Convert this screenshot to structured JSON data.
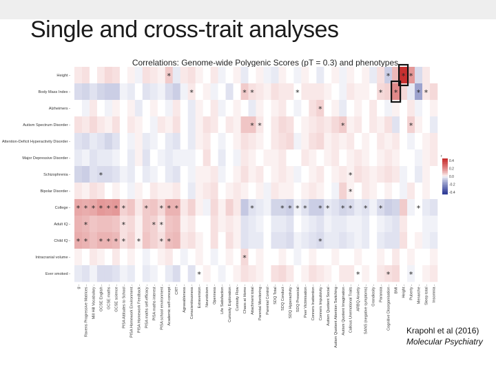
{
  "slide": {
    "title": "Single and cross-trait analyses",
    "citation_author": "Krapohl et al (2016)",
    "citation_journal": "Molecular Psychiatry"
  },
  "colors": {
    "positive": "#c62828",
    "negative": "#283593",
    "neutral": "#ffffff",
    "highlight_box": "#111111"
  },
  "chart_data": {
    "type": "heatmap",
    "title": "Correlations: Genome-wide Polygenic Scores (pT = 0.3) and phenotypes",
    "rows": [
      "Height",
      "Body Mass Index",
      "Alzheimers",
      "Autism Spectrum Disorder",
      "Attention-Deficit Hyperactivity Disorder",
      "Major Depressive Disorder",
      "Schizophrenia",
      "Bipolar Disorder",
      "College",
      "Adult IQ",
      "Child IQ",
      "Intracranial volume",
      "Ever smoked"
    ],
    "columns": [
      "g",
      "Ravens Progressive Matrices",
      "Mill Hill Vocabulary",
      "GCSE English",
      "GCSE maths",
      "GCSE science",
      "PISA Attitudes to School",
      "PISA Homework Environment",
      "PISA Homework Feedback",
      "PISA maths self-efficacy",
      "PISA maths interest",
      "PISA school environment",
      "Academic self-concept",
      "CRT",
      "Agreeableness",
      "Conscientiousness",
      "Extraversion",
      "Neuroticism",
      "Openness",
      "Life Satisfaction",
      "Curiosity Exploration",
      "Curiosity Flow",
      "Chaos at Home",
      "Attachment total",
      "Parental Monitoring",
      "Parental Control",
      "SDQ Total",
      "SDQ Conduct",
      "SDQ Hyperactivity",
      "SDQ Prosocial",
      "Peer Victimisation",
      "Conners Inattention",
      "Conners Impulsivity",
      "Autism Quotient Social",
      "Autism Quotient Attention Switching",
      "Autism Quotient Imagination",
      "Callous Unemotional Traits",
      "ARBQ Anxiety",
      "SANS (negative symptoms)",
      "Grandiosity",
      "Paranoia",
      "Cognitive Disorganisation",
      "BMI",
      "Height",
      "Puberty",
      "Menarche",
      "Sleep total",
      "Insomnia"
    ],
    "legend": {
      "ticks": [
        "0.4",
        "0.2",
        "0.0",
        "-0.2",
        "-0.4"
      ],
      "range": [
        -0.4,
        0.4
      ],
      "placement": "right",
      "marker": "r"
    },
    "significance_marker": "*",
    "values": [
      [
        0.02,
        0.03,
        0.0,
        0.02,
        0.04,
        0.03,
        0.0,
        0.01,
        -0.01,
        0.03,
        0.02,
        0.01,
        0.06,
        -0.02,
        0.02,
        0.03,
        0.01,
        0.0,
        0.02,
        -0.01,
        0.0,
        0.01,
        -0.02,
        0.0,
        0.01,
        -0.01,
        -0.02,
        0.01,
        0.0,
        -0.01,
        0.01,
        0.0,
        -0.02,
        0.0,
        0.01,
        -0.01,
        0.01,
        0.0,
        0.01,
        -0.02,
        0.03,
        -0.06,
        0.09,
        0.38,
        0.15,
        -0.04,
        0.02,
        0.0
      ],
      [
        -0.04,
        -0.05,
        -0.03,
        -0.05,
        -0.06,
        -0.06,
        -0.01,
        -0.02,
        0.0,
        -0.03,
        -0.02,
        -0.01,
        -0.04,
        -0.06,
        -0.01,
        0.02,
        0.0,
        0.01,
        -0.01,
        0.0,
        -0.03,
        0.0,
        0.06,
        0.03,
        0.02,
        0.01,
        0.03,
        0.02,
        0.02,
        0.0,
        0.02,
        0.02,
        0.02,
        0.01,
        0.0,
        -0.01,
        0.02,
        0.01,
        0.01,
        0.0,
        0.04,
        0.05,
        0.18,
        0.04,
        -0.02,
        -0.14,
        0.02,
        0.04
      ],
      [
        0.0,
        -0.01,
        0.02,
        0.0,
        -0.01,
        0.01,
        0.0,
        0.01,
        -0.02,
        0.0,
        0.01,
        0.0,
        -0.01,
        0.02,
        0.0,
        -0.02,
        0.01,
        0.0,
        0.02,
        -0.01,
        0.0,
        0.01,
        0.0,
        -0.02,
        0.01,
        0.0,
        0.01,
        0.02,
        0.0,
        -0.01,
        0.0,
        0.03,
        0.05,
        0.0,
        0.01,
        -0.02,
        0.0,
        0.01,
        0.0,
        0.02,
        0.0,
        -0.01,
        0.01,
        0.0,
        0.02,
        -0.01,
        0.0,
        0.01
      ],
      [
        0.03,
        0.02,
        0.04,
        0.02,
        0.01,
        0.03,
        0.0,
        0.02,
        0.01,
        0.0,
        -0.01,
        0.02,
        0.01,
        0.03,
        0.0,
        -0.02,
        0.01,
        0.03,
        0.02,
        0.0,
        0.02,
        0.01,
        0.07,
        0.07,
        0.02,
        0.0,
        0.02,
        0.04,
        0.03,
        0.0,
        0.01,
        0.02,
        0.03,
        0.02,
        0.04,
        0.06,
        0.01,
        0.02,
        0.0,
        0.02,
        0.01,
        0.03,
        -0.03,
        0.0,
        0.05,
        0.01,
        0.0,
        -0.02
      ],
      [
        -0.03,
        -0.04,
        -0.02,
        -0.03,
        -0.05,
        -0.03,
        0.0,
        -0.01,
        0.01,
        -0.02,
        -0.01,
        0.0,
        -0.02,
        -0.03,
        0.0,
        -0.02,
        0.01,
        0.02,
        0.0,
        -0.01,
        0.0,
        0.01,
        0.03,
        0.02,
        0.01,
        0.0,
        0.02,
        0.03,
        0.04,
        -0.01,
        0.01,
        0.03,
        0.04,
        0.01,
        0.02,
        0.01,
        0.02,
        0.0,
        0.01,
        0.0,
        0.02,
        0.01,
        0.02,
        0.0,
        -0.01,
        0.0,
        0.01,
        0.02
      ],
      [
        -0.02,
        -0.01,
        -0.03,
        -0.02,
        -0.02,
        -0.01,
        0.0,
        -0.02,
        0.01,
        -0.03,
        0.0,
        -0.01,
        -0.02,
        -0.01,
        -0.01,
        -0.01,
        0.0,
        0.03,
        0.0,
        -0.02,
        0.0,
        -0.01,
        0.02,
        0.01,
        0.0,
        0.01,
        0.01,
        0.02,
        0.0,
        0.0,
        0.02,
        0.01,
        0.0,
        0.01,
        0.02,
        0.0,
        0.01,
        0.02,
        0.01,
        0.0,
        0.01,
        0.02,
        0.01,
        0.0,
        0.0,
        -0.01,
        0.01,
        0.02
      ],
      [
        -0.05,
        -0.06,
        -0.03,
        -0.04,
        -0.04,
        -0.03,
        -0.01,
        -0.02,
        0.0,
        -0.02,
        -0.01,
        0.0,
        -0.02,
        -0.03,
        0.0,
        -0.01,
        0.01,
        0.01,
        0.02,
        -0.01,
        0.0,
        0.01,
        0.03,
        0.01,
        0.02,
        0.0,
        0.01,
        0.02,
        0.01,
        -0.01,
        0.0,
        0.01,
        0.02,
        0.0,
        0.01,
        0.02,
        0.01,
        0.03,
        0.02,
        0.01,
        0.02,
        0.03,
        0.02,
        -0.01,
        0.0,
        -0.02,
        0.01,
        0.0
      ],
      [
        0.02,
        0.01,
        0.03,
        0.02,
        0.0,
        0.01,
        0.0,
        -0.01,
        0.01,
        0.0,
        0.02,
        0.01,
        0.01,
        0.02,
        0.0,
        -0.02,
        0.01,
        0.02,
        0.03,
        0.0,
        0.01,
        0.02,
        0.01,
        0.0,
        0.01,
        -0.01,
        0.02,
        0.01,
        0.01,
        0.0,
        0.01,
        0.02,
        0.01,
        0.0,
        -0.01,
        0.05,
        0.01,
        0.0,
        0.02,
        0.01,
        0.0,
        0.01,
        0.0,
        -0.01,
        0.02,
        0.0,
        0.01,
        0.0
      ],
      [
        0.12,
        0.11,
        0.12,
        0.15,
        0.14,
        0.15,
        0.05,
        0.07,
        0.02,
        0.06,
        0.07,
        0.04,
        0.1,
        0.1,
        0.02,
        0.05,
        0.01,
        -0.01,
        0.04,
        0.01,
        0.05,
        0.02,
        -0.07,
        -0.03,
        -0.02,
        -0.01,
        -0.05,
        -0.05,
        -0.06,
        -0.01,
        -0.03,
        -0.06,
        -0.06,
        -0.02,
        -0.03,
        -0.05,
        -0.04,
        -0.02,
        -0.03,
        -0.01,
        -0.04,
        -0.06,
        -0.05,
        0.06,
        -0.01,
        0.0,
        -0.02,
        -0.03
      ],
      [
        0.1,
        0.09,
        0.07,
        0.08,
        0.08,
        0.07,
        0.03,
        0.04,
        0.01,
        0.06,
        0.05,
        0.02,
        0.07,
        0.08,
        0.01,
        0.02,
        0.0,
        0.0,
        0.03,
        0.01,
        0.02,
        0.01,
        -0.03,
        -0.02,
        -0.01,
        0.0,
        -0.02,
        -0.02,
        -0.03,
        0.0,
        -0.01,
        -0.02,
        -0.03,
        -0.01,
        -0.02,
        -0.02,
        -0.01,
        -0.01,
        -0.02,
        0.0,
        -0.01,
        -0.02,
        -0.03,
        0.02,
        0.0,
        0.0,
        -0.01,
        -0.01
      ],
      [
        0.11,
        0.1,
        0.08,
        0.1,
        0.1,
        0.09,
        0.03,
        0.05,
        0.01,
        0.07,
        0.05,
        0.03,
        0.08,
        0.09,
        0.02,
        0.03,
        0.01,
        0.0,
        0.03,
        0.0,
        0.03,
        0.01,
        -0.03,
        -0.02,
        -0.02,
        0.0,
        -0.03,
        -0.03,
        -0.04,
        -0.01,
        -0.02,
        -0.03,
        -0.04,
        -0.02,
        -0.02,
        -0.03,
        -0.02,
        -0.01,
        -0.02,
        0.0,
        -0.02,
        -0.03,
        -0.03,
        0.03,
        0.0,
        0.01,
        -0.01,
        -0.02
      ],
      [
        0.01,
        0.0,
        0.02,
        0.01,
        0.0,
        0.02,
        0.0,
        0.01,
        0.0,
        -0.01,
        0.0,
        0.01,
        0.02,
        0.0,
        -0.01,
        0.0,
        0.01,
        0.0,
        -0.01,
        0.0,
        0.01,
        0.0,
        0.04,
        0.0,
        0.01,
        0.0,
        0.0,
        0.01,
        0.0,
        -0.01,
        0.0,
        0.01,
        0.0,
        0.0,
        0.01,
        0.0,
        0.0,
        0.01,
        0.0,
        0.0,
        0.01,
        0.0,
        0.02,
        0.0,
        0.01,
        0.0,
        0.0,
        0.01
      ],
      [
        -0.02,
        -0.03,
        -0.01,
        -0.04,
        -0.04,
        -0.03,
        -0.01,
        -0.02,
        0.0,
        -0.02,
        -0.01,
        0.0,
        -0.02,
        -0.04,
        0.0,
        -0.03,
        0.0,
        0.01,
        0.0,
        -0.01,
        0.0,
        0.01,
        0.03,
        0.02,
        0.01,
        0.0,
        0.03,
        0.04,
        0.02,
        0.0,
        0.01,
        0.03,
        0.02,
        0.01,
        0.0,
        0.02,
        0.02,
        0.0,
        0.01,
        0.0,
        0.02,
        0.03,
        0.04,
        0.0,
        -0.01,
        0.0,
        0.01,
        0.02
      ]
    ],
    "asterisks": [
      [
        0,
        12
      ],
      [
        0,
        41
      ],
      [
        0,
        43
      ],
      [
        0,
        44
      ],
      [
        1,
        15
      ],
      [
        1,
        22
      ],
      [
        1,
        23
      ],
      [
        1,
        29
      ],
      [
        1,
        40
      ],
      [
        1,
        42
      ],
      [
        1,
        45
      ],
      [
        1,
        46
      ],
      [
        2,
        32
      ],
      [
        3,
        23
      ],
      [
        3,
        24
      ],
      [
        3,
        35
      ],
      [
        3,
        44
      ],
      [
        6,
        3
      ],
      [
        6,
        36
      ],
      [
        7,
        36
      ],
      [
        8,
        0
      ],
      [
        8,
        1
      ],
      [
        8,
        2
      ],
      [
        8,
        3
      ],
      [
        8,
        4
      ],
      [
        8,
        5
      ],
      [
        8,
        6
      ],
      [
        8,
        9
      ],
      [
        8,
        11
      ],
      [
        8,
        12
      ],
      [
        8,
        13
      ],
      [
        8,
        23
      ],
      [
        8,
        27
      ],
      [
        8,
        28
      ],
      [
        8,
        29
      ],
      [
        8,
        30
      ],
      [
        8,
        32
      ],
      [
        8,
        33
      ],
      [
        8,
        35
      ],
      [
        8,
        36
      ],
      [
        8,
        38
      ],
      [
        8,
        40
      ],
      [
        8,
        45
      ],
      [
        9,
        1
      ],
      [
        9,
        6
      ],
      [
        9,
        10
      ],
      [
        9,
        11
      ],
      [
        10,
        0
      ],
      [
        10,
        1
      ],
      [
        10,
        3
      ],
      [
        10,
        4
      ],
      [
        10,
        5
      ],
      [
        10,
        6
      ],
      [
        10,
        8
      ],
      [
        10,
        11
      ],
      [
        10,
        12
      ],
      [
        10,
        32
      ],
      [
        11,
        22
      ],
      [
        12,
        16
      ],
      [
        12,
        37
      ],
      [
        12,
        41
      ],
      [
        12,
        44
      ]
    ],
    "highlighted_cells": [
      [
        0,
        43
      ],
      [
        1,
        42
      ]
    ]
  }
}
